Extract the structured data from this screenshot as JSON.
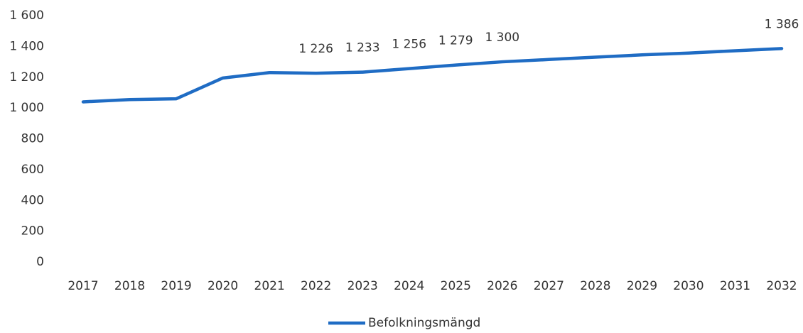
{
  "chart_data": {
    "type": "line",
    "categories": [
      "2017",
      "2018",
      "2019",
      "2020",
      "2021",
      "2022",
      "2023",
      "2024",
      "2025",
      "2026",
      "2027",
      "2028",
      "2029",
      "2030",
      "2031",
      "2032"
    ],
    "series": [
      {
        "name": "Befolkningsmängd",
        "color": "#1f6cc4",
        "values": [
          1040,
          1055,
          1060,
          1195,
          1230,
          1226,
          1233,
          1256,
          1279,
          1300,
          1315,
          1330,
          1345,
          1357,
          1372,
          1386
        ],
        "value_labels": [
          null,
          null,
          null,
          null,
          null,
          "1 226",
          "1 233",
          "1 256",
          "1 279",
          "1 300",
          null,
          null,
          null,
          null,
          null,
          "1 386"
        ]
      }
    ],
    "ylim": [
      0,
      1600
    ],
    "yticks": [
      0,
      200,
      400,
      600,
      800,
      {
        "value": 1000,
        "label": "1 000"
      },
      {
        "value": 1200,
        "label": "1 200"
      },
      {
        "value": 1400,
        "label": "1 400"
      },
      {
        "value": 1600,
        "label": "1 600"
      }
    ],
    "grid": false,
    "legend": "bottom"
  }
}
